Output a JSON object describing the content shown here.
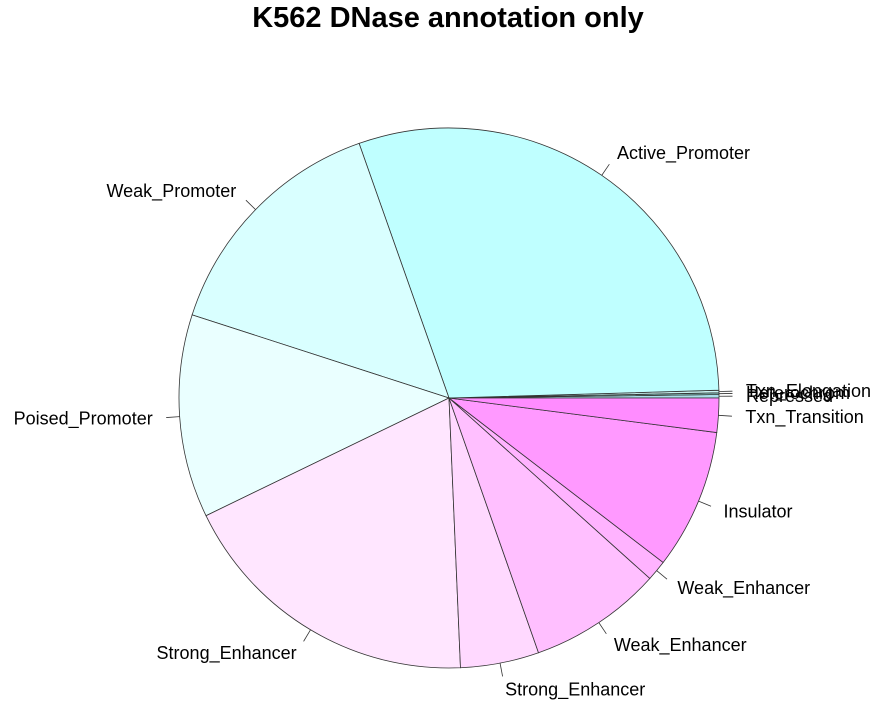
{
  "chart_data": {
    "type": "pie",
    "title": "K562 DNase annotation only",
    "start_angle": "counterclockwise from 3 o'clock",
    "slices": [
      {
        "label": "Repressed",
        "value": 0.2,
        "color": "#a9dde9"
      },
      {
        "label": "Heterochrom",
        "value": 0.1,
        "color": "#8fe0d8"
      },
      {
        "label": "Txn_Elongation",
        "value": 0.15,
        "color": "#c7f2f0"
      },
      {
        "label": "Active_Promoter",
        "value": 29.3,
        "color": "#bfffff"
      },
      {
        "label": "Weak_Promoter",
        "value": 14.3,
        "color": "#d9ffff"
      },
      {
        "label": "Poised_Promoter",
        "value": 11.9,
        "color": "#eaffff"
      },
      {
        "label": "Strong_Enhancer",
        "value": 18.1,
        "color": "#ffe6ff"
      },
      {
        "label": "Strong_Enhancer",
        "value": 4.6,
        "color": "#ffd9ff"
      },
      {
        "label": "Weak_Enhancer",
        "value": 7.8,
        "color": "#ffbfff"
      },
      {
        "label": "Weak_Enhancer",
        "value": 1.2,
        "color": "#ffb3ff"
      },
      {
        "label": "Insulator",
        "value": 8.2,
        "color": "#ff99ff"
      },
      {
        "label": "Txn_Transition",
        "value": 2.0,
        "color": "#ff8cff"
      }
    ]
  }
}
